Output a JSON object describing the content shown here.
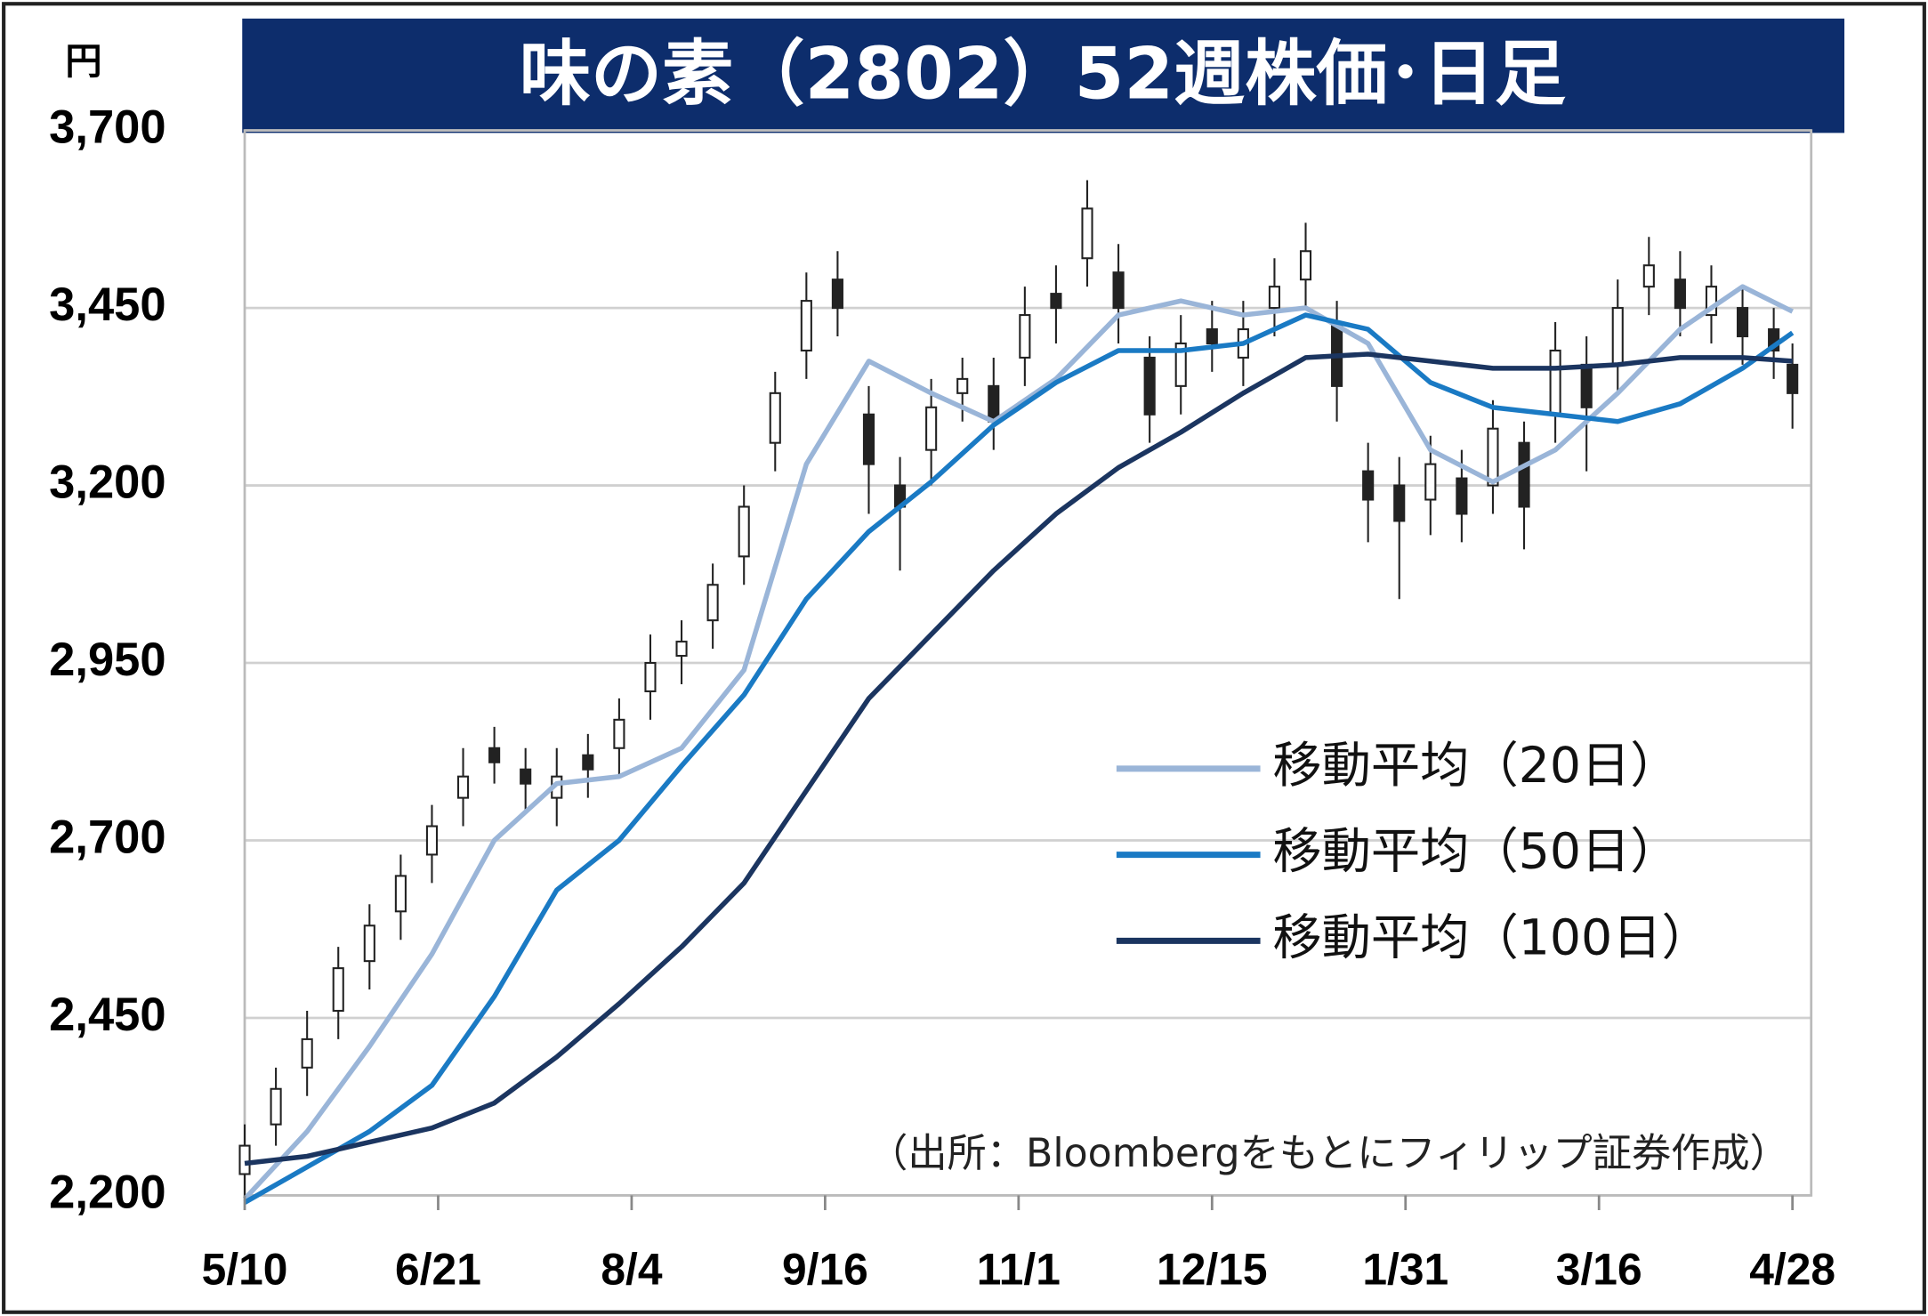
{
  "chart_data": {
    "type": "candlestick",
    "title": "味の素（2802）52週株価･日足",
    "unit_label": "円",
    "source": "（出所：Bloombergをもとにフィリップ証券作成）",
    "xlim": [
      0,
      251
    ],
    "xticks": [
      {
        "value": 0,
        "label": "5/10"
      },
      {
        "value": 31,
        "label": "6/21"
      },
      {
        "value": 62,
        "label": "8/4"
      },
      {
        "value": 93,
        "label": "9/16"
      },
      {
        "value": 124,
        "label": "11/1"
      },
      {
        "value": 155,
        "label": "12/15"
      },
      {
        "value": 186,
        "label": "1/31"
      },
      {
        "value": 217,
        "label": "3/16"
      },
      {
        "value": 248,
        "label": "4/28"
      }
    ],
    "ylim": [
      2200,
      3700
    ],
    "yticks": [
      {
        "value": 2200,
        "label": "2,200"
      },
      {
        "value": 2450,
        "label": "2,450"
      },
      {
        "value": 2700,
        "label": "2,700"
      },
      {
        "value": 2950,
        "label": "2,950"
      },
      {
        "value": 3200,
        "label": "3,200"
      },
      {
        "value": 3450,
        "label": "3,450"
      },
      {
        "value": 3700,
        "label": "3,700"
      }
    ],
    "grid": true,
    "candles": {
      "x": [
        0,
        5,
        10,
        15,
        20,
        25,
        30,
        35,
        40,
        45,
        50,
        55,
        60,
        65,
        70,
        75,
        80,
        85,
        90,
        95,
        100,
        105,
        110,
        115,
        120,
        125,
        130,
        135,
        140,
        145,
        150,
        155,
        160,
        165,
        170,
        175,
        180,
        185,
        190,
        195,
        200,
        205,
        210,
        215,
        220,
        225,
        230,
        235,
        240,
        245,
        248
      ],
      "open": [
        2230,
        2300,
        2380,
        2460,
        2530,
        2600,
        2680,
        2760,
        2830,
        2800,
        2760,
        2820,
        2830,
        2910,
        2960,
        3010,
        3100,
        3260,
        3390,
        3490,
        3300,
        3200,
        3250,
        3330,
        3340,
        3380,
        3470,
        3520,
        3500,
        3380,
        3340,
        3420,
        3380,
        3450,
        3490,
        3430,
        3220,
        3200,
        3180,
        3210,
        3200,
        3260,
        3300,
        3370,
        3370,
        3480,
        3490,
        3440,
        3450,
        3420,
        3370
      ],
      "high": [
        2300,
        2380,
        2460,
        2550,
        2610,
        2680,
        2750,
        2830,
        2860,
        2830,
        2830,
        2850,
        2900,
        2990,
        3010,
        3090,
        3200,
        3360,
        3500,
        3530,
        3340,
        3240,
        3350,
        3380,
        3380,
        3480,
        3510,
        3630,
        3540,
        3410,
        3440,
        3460,
        3460,
        3520,
        3570,
        3460,
        3260,
        3240,
        3270,
        3250,
        3320,
        3290,
        3430,
        3410,
        3490,
        3550,
        3530,
        3510,
        3480,
        3450,
        3400
      ],
      "low": [
        2200,
        2270,
        2340,
        2420,
        2490,
        2560,
        2640,
        2720,
        2780,
        2740,
        2720,
        2760,
        2790,
        2870,
        2920,
        2970,
        3060,
        3220,
        3350,
        3410,
        3160,
        3080,
        3200,
        3290,
        3250,
        3340,
        3400,
        3480,
        3400,
        3260,
        3300,
        3360,
        3340,
        3410,
        3450,
        3290,
        3120,
        3040,
        3130,
        3120,
        3160,
        3110,
        3260,
        3220,
        3330,
        3440,
        3410,
        3400,
        3370,
        3350,
        3280
      ],
      "close": [
        2270,
        2350,
        2420,
        2520,
        2580,
        2650,
        2720,
        2790,
        2810,
        2780,
        2790,
        2800,
        2870,
        2950,
        2980,
        3060,
        3170,
        3330,
        3460,
        3450,
        3230,
        3170,
        3310,
        3350,
        3290,
        3440,
        3450,
        3590,
        3450,
        3300,
        3400,
        3400,
        3420,
        3480,
        3530,
        3340,
        3180,
        3150,
        3230,
        3160,
        3280,
        3170,
        3390,
        3310,
        3450,
        3510,
        3450,
        3480,
        3410,
        3390,
        3330
      ]
    },
    "series": [
      {
        "name": "移動平均（20日）",
        "color": "#9ab5d8",
        "x": [
          0,
          10,
          20,
          30,
          40,
          50,
          60,
          70,
          80,
          90,
          100,
          110,
          120,
          130,
          140,
          150,
          160,
          170,
          180,
          190,
          200,
          210,
          220,
          230,
          240,
          248
        ],
        "values": [
          2195,
          2290,
          2410,
          2540,
          2700,
          2780,
          2790,
          2830,
          2940,
          3230,
          3375,
          3330,
          3290,
          3350,
          3440,
          3460,
          3440,
          3450,
          3400,
          3250,
          3205,
          3250,
          3330,
          3420,
          3480,
          3445
        ]
      },
      {
        "name": "移動平均（50日）",
        "color": "#1a7ac4",
        "x": [
          0,
          10,
          20,
          30,
          40,
          50,
          60,
          70,
          80,
          90,
          100,
          110,
          120,
          130,
          140,
          150,
          160,
          170,
          180,
          190,
          200,
          210,
          220,
          230,
          240,
          248
        ],
        "values": [
          2190,
          2240,
          2290,
          2355,
          2480,
          2630,
          2700,
          2805,
          2905,
          3040,
          3135,
          3205,
          3285,
          3345,
          3390,
          3390,
          3400,
          3440,
          3420,
          3345,
          3310,
          3300,
          3290,
          3315,
          3365,
          3415
        ]
      },
      {
        "name": "移動平均（100日）",
        "color": "#1b3560",
        "x": [
          0,
          10,
          20,
          30,
          40,
          50,
          60,
          70,
          80,
          90,
          100,
          110,
          120,
          130,
          140,
          150,
          160,
          170,
          180,
          190,
          200,
          210,
          220,
          230,
          240,
          248
        ],
        "values": [
          2245,
          2255,
          2275,
          2295,
          2330,
          2395,
          2470,
          2550,
          2640,
          2770,
          2900,
          2990,
          3080,
          3160,
          3225,
          3275,
          3330,
          3380,
          3385,
          3375,
          3365,
          3365,
          3370,
          3380,
          3380,
          3375
        ]
      }
    ]
  }
}
